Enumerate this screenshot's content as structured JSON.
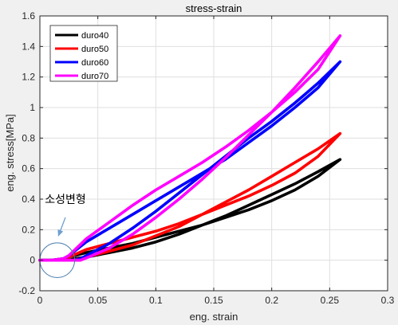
{
  "chart_data": {
    "type": "line",
    "title": "stress-strain",
    "xlabel": "eng. strain",
    "ylabel": "eng. stress[MPa]",
    "xlim": [
      0,
      0.3
    ],
    "ylim": [
      -0.2,
      1.6
    ],
    "xticks": [
      0,
      0.05,
      0.1,
      0.15,
      0.2,
      0.25,
      0.3
    ],
    "xtick_labels": [
      "0",
      "0.05",
      "0.1",
      "0.15",
      "0.2",
      "0.25",
      "0.3"
    ],
    "yticks": [
      -0.2,
      0,
      0.2,
      0.4,
      0.6,
      0.8,
      1,
      1.2,
      1.4,
      1.6
    ],
    "ytick_labels": [
      "-0.2",
      "0",
      "0.2",
      "0.4",
      "0.6",
      "0.8",
      "1",
      "1.2",
      "1.4",
      "1.6"
    ],
    "grid": true,
    "legend_position": "top-left",
    "series": [
      {
        "name": "duro40",
        "color": "#000000",
        "loading": [
          [
            0.0,
            0.0
          ],
          [
            0.01,
            0.0
          ],
          [
            0.02,
            0.01
          ],
          [
            0.025,
            0.02
          ],
          [
            0.04,
            0.05
          ],
          [
            0.06,
            0.08
          ],
          [
            0.08,
            0.11
          ],
          [
            0.1,
            0.15
          ],
          [
            0.12,
            0.19
          ],
          [
            0.14,
            0.23
          ],
          [
            0.16,
            0.28
          ],
          [
            0.18,
            0.33
          ],
          [
            0.2,
            0.39
          ],
          [
            0.22,
            0.46
          ],
          [
            0.24,
            0.55
          ],
          [
            0.259,
            0.66
          ]
        ],
        "unloading": [
          [
            0.259,
            0.66
          ],
          [
            0.24,
            0.58
          ],
          [
            0.22,
            0.5
          ],
          [
            0.2,
            0.43
          ],
          [
            0.18,
            0.36
          ],
          [
            0.16,
            0.29
          ],
          [
            0.14,
            0.23
          ],
          [
            0.12,
            0.17
          ],
          [
            0.1,
            0.12
          ],
          [
            0.08,
            0.08
          ],
          [
            0.06,
            0.05
          ],
          [
            0.04,
            0.02
          ],
          [
            0.03,
            0.01
          ],
          [
            0.025,
            0.0
          ],
          [
            0.01,
            0.0
          ]
        ]
      },
      {
        "name": "duro50",
        "color": "#ff0000",
        "loading": [
          [
            0.0,
            0.0
          ],
          [
            0.01,
            0.0
          ],
          [
            0.02,
            0.01
          ],
          [
            0.025,
            0.02
          ],
          [
            0.04,
            0.07
          ],
          [
            0.06,
            0.11
          ],
          [
            0.08,
            0.15
          ],
          [
            0.1,
            0.19
          ],
          [
            0.12,
            0.24
          ],
          [
            0.14,
            0.3
          ],
          [
            0.16,
            0.36
          ],
          [
            0.18,
            0.42
          ],
          [
            0.2,
            0.49
          ],
          [
            0.22,
            0.57
          ],
          [
            0.24,
            0.68
          ],
          [
            0.259,
            0.83
          ]
        ],
        "unloading": [
          [
            0.259,
            0.83
          ],
          [
            0.24,
            0.73
          ],
          [
            0.22,
            0.64
          ],
          [
            0.2,
            0.55
          ],
          [
            0.18,
            0.46
          ],
          [
            0.16,
            0.38
          ],
          [
            0.14,
            0.3
          ],
          [
            0.12,
            0.22
          ],
          [
            0.1,
            0.16
          ],
          [
            0.08,
            0.1
          ],
          [
            0.06,
            0.06
          ],
          [
            0.045,
            0.03
          ],
          [
            0.035,
            0.01
          ],
          [
            0.028,
            0.0
          ],
          [
            0.01,
            0.0
          ]
        ]
      },
      {
        "name": "duro60",
        "color": "#0000ff",
        "loading": [
          [
            0.0,
            0.0
          ],
          [
            0.01,
            0.0
          ],
          [
            0.02,
            0.01
          ],
          [
            0.025,
            0.03
          ],
          [
            0.04,
            0.12
          ],
          [
            0.06,
            0.21
          ],
          [
            0.08,
            0.3
          ],
          [
            0.1,
            0.39
          ],
          [
            0.12,
            0.48
          ],
          [
            0.14,
            0.57
          ],
          [
            0.16,
            0.66
          ],
          [
            0.18,
            0.77
          ],
          [
            0.2,
            0.88
          ],
          [
            0.22,
            1.0
          ],
          [
            0.24,
            1.13
          ],
          [
            0.259,
            1.3
          ]
        ],
        "unloading": [
          [
            0.259,
            1.3
          ],
          [
            0.24,
            1.16
          ],
          [
            0.22,
            1.03
          ],
          [
            0.2,
            0.91
          ],
          [
            0.18,
            0.8
          ],
          [
            0.16,
            0.68
          ],
          [
            0.14,
            0.56
          ],
          [
            0.12,
            0.44
          ],
          [
            0.1,
            0.32
          ],
          [
            0.08,
            0.21
          ],
          [
            0.06,
            0.11
          ],
          [
            0.045,
            0.05
          ],
          [
            0.035,
            0.01
          ],
          [
            0.03,
            0.0
          ],
          [
            0.01,
            0.0
          ]
        ]
      },
      {
        "name": "duro70",
        "color": "#ff00ff",
        "loading": [
          [
            0.0,
            0.0
          ],
          [
            0.01,
            0.0
          ],
          [
            0.02,
            0.01
          ],
          [
            0.025,
            0.03
          ],
          [
            0.04,
            0.14
          ],
          [
            0.06,
            0.25
          ],
          [
            0.08,
            0.36
          ],
          [
            0.1,
            0.46
          ],
          [
            0.12,
            0.55
          ],
          [
            0.14,
            0.64
          ],
          [
            0.16,
            0.74
          ],
          [
            0.18,
            0.85
          ],
          [
            0.2,
            0.97
          ],
          [
            0.22,
            1.1
          ],
          [
            0.24,
            1.25
          ],
          [
            0.259,
            1.47
          ]
        ],
        "unloading": [
          [
            0.259,
            1.47
          ],
          [
            0.24,
            1.3
          ],
          [
            0.22,
            1.13
          ],
          [
            0.2,
            0.97
          ],
          [
            0.18,
            0.82
          ],
          [
            0.16,
            0.67
          ],
          [
            0.14,
            0.53
          ],
          [
            0.12,
            0.4
          ],
          [
            0.1,
            0.28
          ],
          [
            0.08,
            0.17
          ],
          [
            0.06,
            0.08
          ],
          [
            0.045,
            0.03
          ],
          [
            0.035,
            0.0
          ],
          [
            0.01,
            0.0
          ]
        ]
      }
    ],
    "annotation": {
      "text": "소성변형",
      "text_at": [
        0.022,
        0.4
      ],
      "arrow_from": [
        0.022,
        0.28
      ],
      "arrow_to": [
        0.016,
        0.16
      ],
      "circle_center": [
        0.015,
        0.0
      ],
      "circle_radius": 0.015
    }
  }
}
